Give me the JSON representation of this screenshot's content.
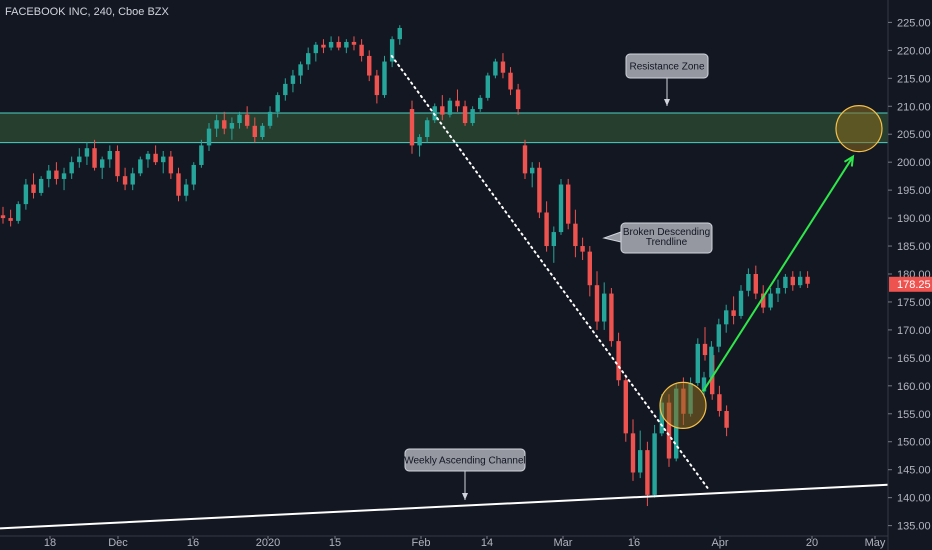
{
  "header": {
    "title": "FACEBOOK INC, 240, Cboe BZX"
  },
  "colors": {
    "background": "#131722",
    "up": "#26a69a",
    "down": "#ef5350",
    "zone_fill": "#26402f",
    "zone_border": "#4dd0c4",
    "circle": "#f5c04a",
    "arrow": "#2ee84b",
    "price_badge": "#ef5350"
  },
  "chart_data": {
    "type": "candlestick",
    "ylim": [
      133.5,
      226.5
    ],
    "yticks": [
      135,
      140,
      145,
      150,
      155,
      160,
      165,
      170,
      175,
      180,
      185,
      190,
      195,
      200,
      205,
      210,
      215,
      220,
      225
    ],
    "xlabels": [
      "18",
      "Dec",
      "16",
      "2020",
      "15",
      "Feb",
      "14",
      "Mar",
      "16",
      "Apr",
      "20",
      "May"
    ],
    "last_price": "178.25",
    "resistance_zone": [
      203.5,
      208.8
    ],
    "trendline": {
      "from": [
        "Jan 29",
        219
      ],
      "to": [
        "Mar 29",
        141.5
      ]
    },
    "channel_line": {
      "from": [
        "Nov 9",
        134.5
      ],
      "to": [
        "May 2",
        142.3
      ]
    },
    "projection_arrow": {
      "from": [
        "Mar 25",
        159
      ],
      "to": [
        "Apr 26",
        201
      ]
    },
    "circles": [
      {
        "at": [
          "Mar 23",
          156.5
        ]
      },
      {
        "at": [
          "Apr 28",
          206
        ]
      }
    ],
    "annotations": [
      {
        "text": [
          "Resistance Zone"
        ]
      },
      {
        "text": [
          "Broken Descending",
          "Trendline"
        ]
      },
      {
        "text": [
          "Weekly Ascending Channel"
        ]
      }
    ],
    "series": [
      {
        "points": [
          [
            190.5,
            192,
            189,
            190
          ],
          [
            190,
            191.5,
            188.5,
            189.5
          ],
          [
            189.5,
            193,
            189,
            192.5
          ],
          [
            192.5,
            197,
            191.5,
            196
          ],
          [
            196,
            198,
            193.5,
            194.5
          ],
          [
            194.5,
            197.5,
            194,
            197
          ],
          [
            197,
            199.5,
            195.5,
            198.5
          ],
          [
            198.5,
            200,
            196,
            197
          ],
          [
            197,
            199,
            195,
            198
          ],
          [
            198,
            201,
            197,
            200
          ],
          [
            200,
            202.5,
            199,
            201
          ],
          [
            201,
            203.5,
            199.5,
            202.5
          ],
          [
            202.5,
            204,
            198.5,
            199
          ],
          [
            199,
            201,
            197,
            200.5
          ],
          [
            200.5,
            203,
            199,
            202
          ],
          [
            202,
            203,
            196.5,
            197.5
          ],
          [
            197.5,
            199,
            195,
            196
          ],
          [
            196,
            199,
            195,
            198
          ],
          [
            198,
            201,
            197.5,
            200.5
          ],
          [
            200.5,
            202,
            199,
            201.5
          ],
          [
            201.5,
            203,
            199.5,
            200
          ],
          [
            200,
            202,
            198,
            201
          ],
          [
            201,
            202,
            197,
            198
          ],
          [
            198,
            199,
            193,
            194
          ],
          [
            194,
            197,
            193,
            196
          ],
          [
            196,
            200,
            195,
            199.5
          ],
          [
            199.5,
            204,
            199,
            203
          ],
          [
            203,
            207,
            202,
            206
          ],
          [
            206,
            208.5,
            204.5,
            207.5
          ],
          [
            207.5,
            209,
            205,
            206
          ],
          [
            206,
            208,
            204,
            207
          ],
          [
            207,
            209,
            206,
            208.5
          ],
          [
            208.5,
            210,
            206,
            206.5
          ],
          [
            206.5,
            208,
            203.5,
            204.5
          ],
          [
            204.5,
            207,
            204,
            206.5
          ],
          [
            206.5,
            210,
            206,
            209
          ],
          [
            209,
            212.5,
            208,
            212
          ],
          [
            212,
            215,
            211,
            214
          ],
          [
            214,
            216.5,
            212.5,
            215.5
          ],
          [
            215.5,
            218,
            214,
            217.5
          ],
          [
            217.5,
            220.5,
            216.5,
            219.5
          ],
          [
            219.5,
            221.5,
            218,
            221
          ],
          [
            221,
            222,
            219.5,
            220.5
          ],
          [
            220.5,
            222.5,
            220,
            221.5
          ],
          [
            221.5,
            222.5,
            220,
            220.5
          ],
          [
            220.5,
            222,
            219.5,
            221.5
          ],
          [
            221.5,
            222.5,
            220,
            221
          ],
          [
            221,
            222,
            218,
            219
          ],
          [
            219,
            220,
            214.5,
            215.5
          ],
          [
            215.5,
            216.5,
            210.5,
            212
          ],
          [
            212,
            219,
            211.5,
            218
          ],
          [
            218,
            222.5,
            217,
            222
          ],
          [
            222,
            224.5,
            221,
            224
          ]
        ]
      },
      {
        "points": [
          [
            209.5,
            211,
            201.5,
            203
          ],
          [
            203,
            205,
            201,
            204.5
          ],
          [
            204.5,
            208,
            203.5,
            207.5
          ],
          [
            207.5,
            210.5,
            207,
            210
          ],
          [
            210,
            212,
            207.5,
            208.5
          ],
          [
            208.5,
            211.5,
            208,
            211
          ],
          [
            211,
            213,
            209,
            210
          ],
          [
            210,
            211,
            206.5,
            207
          ],
          [
            207,
            210,
            206.5,
            209.5
          ],
          [
            209.5,
            212,
            209,
            211.5
          ],
          [
            211.5,
            216,
            211,
            215.5
          ],
          [
            215.5,
            218.5,
            215,
            218
          ],
          [
            218,
            219.5,
            215,
            216
          ],
          [
            216,
            217,
            212,
            213
          ],
          [
            213,
            214,
            208.5,
            209.5
          ]
        ]
      },
      {
        "points": [
          [
            203,
            204,
            197,
            198
          ],
          [
            198,
            200,
            195.5,
            199
          ],
          [
            199,
            200,
            190,
            191
          ],
          [
            191,
            193,
            184,
            185
          ],
          [
            185,
            188.5,
            182,
            187.5
          ],
          [
            187.5,
            197,
            187,
            196
          ],
          [
            196,
            197,
            188,
            189
          ],
          [
            189,
            191.5,
            183,
            185
          ],
          [
            185,
            186.5,
            182.5,
            184
          ],
          [
            184,
            185,
            176,
            178
          ],
          [
            178,
            180.5,
            170,
            171.5
          ],
          [
            171.5,
            178.5,
            170,
            176.5
          ],
          [
            176.5,
            177.5,
            167,
            168
          ],
          [
            168,
            169.5,
            160,
            161
          ],
          [
            161,
            162,
            150,
            151.5
          ],
          [
            151.5,
            154,
            143,
            144.5
          ],
          [
            144.5,
            152,
            143.5,
            148.5
          ],
          [
            148.5,
            150,
            138.5,
            140.5
          ],
          [
            140.5,
            153,
            140,
            151.5
          ],
          [
            151.5,
            158.5,
            151,
            157
          ],
          [
            157,
            158.5,
            145.5,
            147
          ],
          [
            147,
            160.5,
            146.5,
            159.5
          ],
          [
            159.5,
            161.5,
            153,
            155
          ],
          [
            155,
            161.5,
            154.5,
            160.5
          ],
          [
            160.5,
            168.5,
            160,
            167.5
          ],
          [
            167.5,
            170.5,
            164.5,
            165.5
          ],
          [
            165.5,
            166.5,
            157.5,
            158.5
          ],
          [
            158.5,
            160,
            154.5,
            155.5
          ],
          [
            155.5,
            156.5,
            151,
            152.5
          ]
        ]
      },
      {
        "points": [
          [
            159,
            162.5,
            158,
            161.5
          ],
          [
            161.5,
            168,
            161,
            167
          ],
          [
            167,
            172,
            166,
            171
          ],
          [
            171,
            174.5,
            169.5,
            173.5
          ],
          [
            173.5,
            176,
            171,
            172.5
          ],
          [
            172.5,
            178,
            172,
            177
          ],
          [
            177,
            181,
            176,
            180
          ],
          [
            180,
            181.5,
            175.5,
            176.5
          ],
          [
            176.5,
            178,
            173,
            174
          ],
          [
            174,
            177.5,
            173.5,
            176.5
          ],
          [
            176.5,
            179,
            175,
            177.5
          ],
          [
            177.5,
            180,
            176.5,
            179.5
          ],
          [
            179.5,
            180.5,
            177,
            178
          ],
          [
            178,
            180.5,
            177.5,
            179.5
          ],
          [
            179.5,
            180.5,
            177.5,
            178.25
          ]
        ]
      }
    ]
  }
}
